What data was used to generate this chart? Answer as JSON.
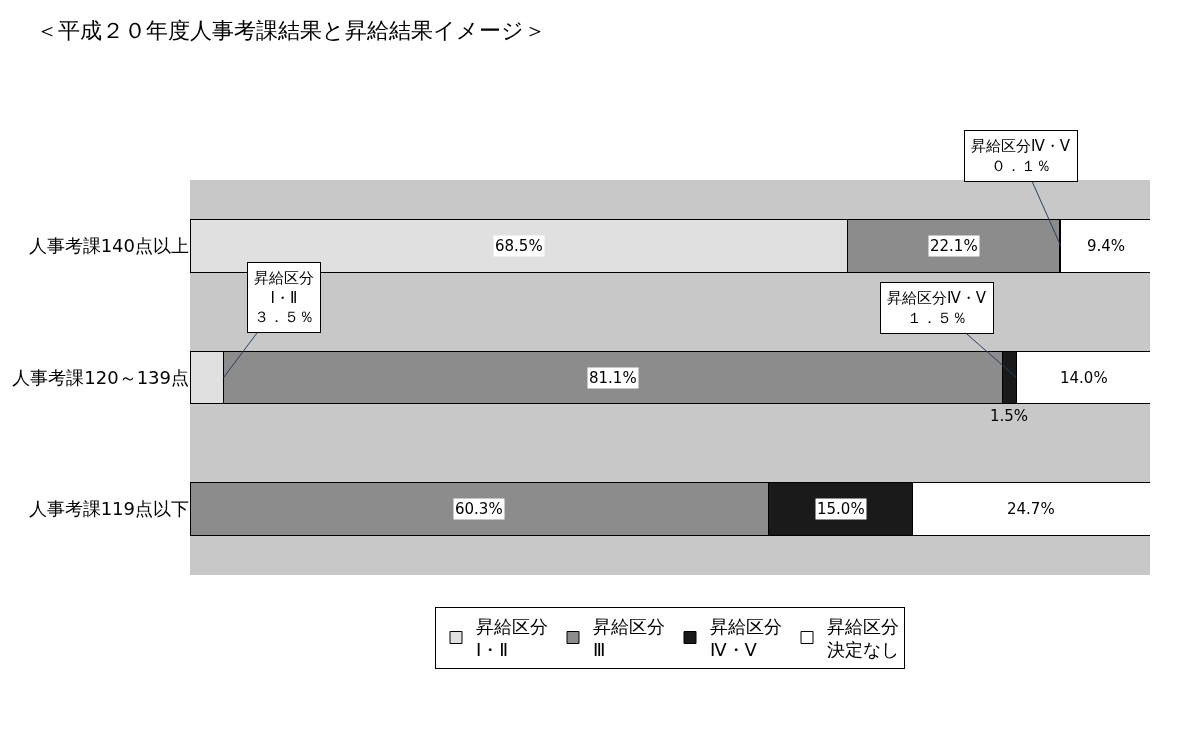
{
  "chart_data": {
    "type": "bar",
    "orientation": "horizontal",
    "stacked": true,
    "title": "＜平成２０年度人事考課結果と昇給結果イメージ＞",
    "categories": [
      "人事考課140点以上",
      "人事考課120～139点",
      "人事考課119点以下"
    ],
    "series": [
      {
        "name": "昇給区分Ⅰ・Ⅱ",
        "color": "#e0e0e0",
        "values": [
          68.5,
          3.5,
          0
        ],
        "value_labels": [
          "68.5%",
          null,
          null
        ]
      },
      {
        "name": "昇給区分Ⅲ",
        "color": "#8c8c8c",
        "values": [
          22.1,
          81.1,
          60.3
        ],
        "value_labels": [
          "22.1%",
          "81.1%",
          "60.3%"
        ]
      },
      {
        "name": "昇給区分Ⅳ・Ⅴ",
        "color": "#1a1a1a",
        "values": [
          0.1,
          1.5,
          15.0
        ],
        "value_labels": [
          null,
          "1.5%",
          "15.0%"
        ]
      },
      {
        "name": "昇給区分決定なし",
        "color": "#ffffff",
        "values": [
          9.4,
          14.0,
          24.7
        ],
        "value_labels": [
          "9.4%",
          "14.0%",
          "24.7%"
        ]
      }
    ],
    "annotations": [
      {
        "text": "昇給区分\nⅠ・Ⅱ\n３．５％",
        "x": 3.5,
        "y": "人事考課120～139点"
      },
      {
        "text": "昇給区分Ⅳ・Ⅴ\n０．１％",
        "x": 90.7,
        "y": "人事考課140点以上"
      },
      {
        "text": "昇給区分Ⅳ・Ⅴ\n１．５％",
        "x": 86.1,
        "y": "人事考課120～139点"
      }
    ],
    "xlim": [
      0,
      100
    ],
    "tick_labels": "y",
    "legend": "bottom"
  }
}
